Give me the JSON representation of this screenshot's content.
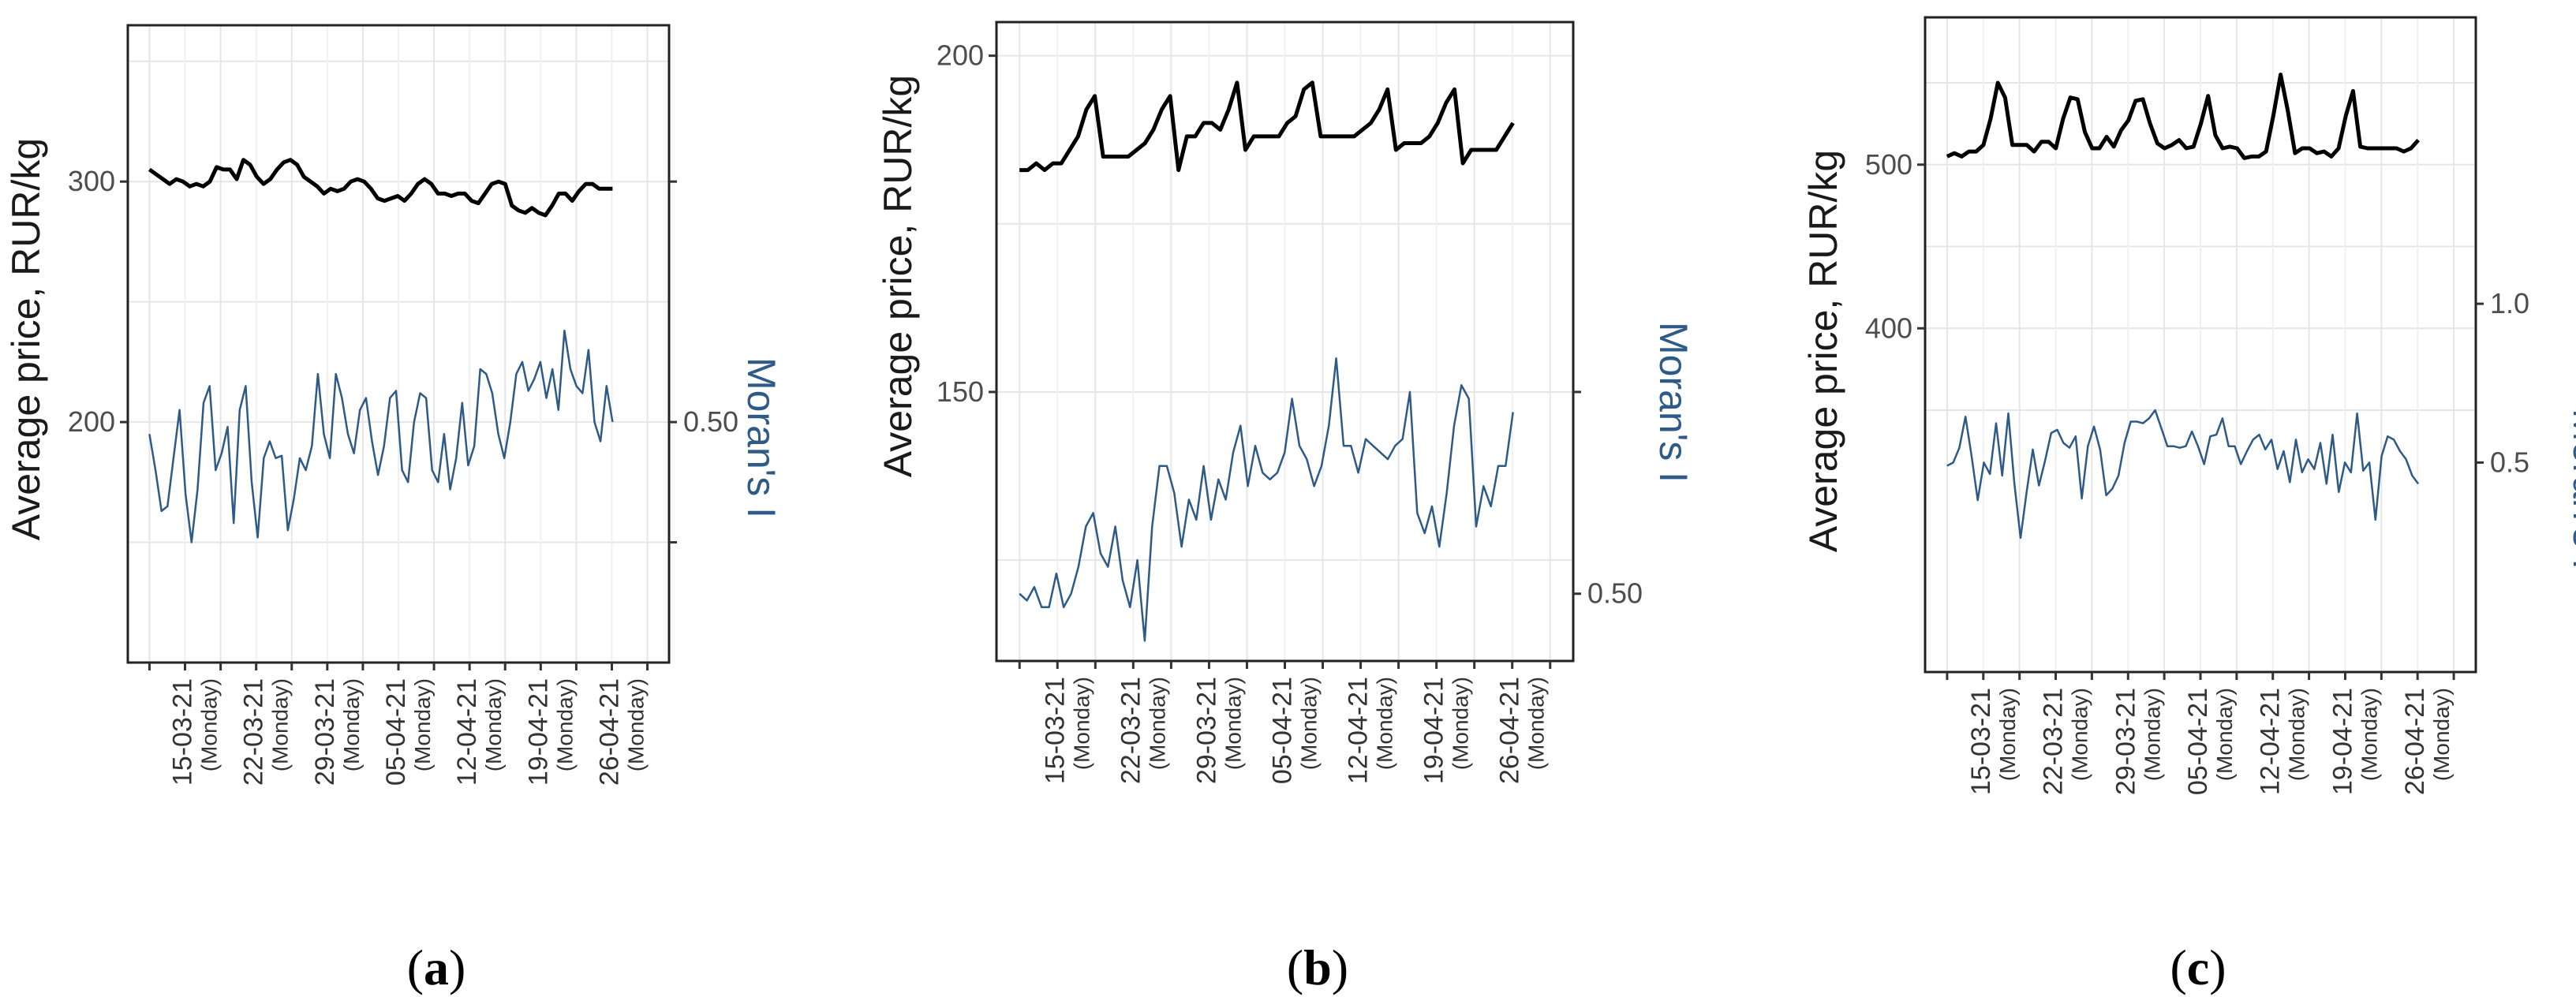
{
  "chart_data": [
    {
      "type": "line",
      "panel": "a",
      "caption_letter": "a",
      "ylabel": "Average price, RUR/kg",
      "ylabel_right": "Moran's I",
      "x_tick_dates": [
        "15-03-21",
        "22-03-21",
        "29-03-21",
        "05-04-21",
        "12-04-21",
        "19-04-21",
        "26-04-21"
      ],
      "x_tick_weekday": "(Monday)",
      "ylim": [
        100,
        365
      ],
      "y_ticks": [
        200,
        300
      ],
      "y_tick_labels": [
        "200",
        "300"
      ],
      "right_ticks": [
        0.5
      ],
      "right_tick_labels": [
        "0.50"
      ],
      "right_extra_tick_values": [
        150,
        300
      ],
      "series": [
        {
          "name": "Average price",
          "axis": "left",
          "color": "#000000",
          "values": [
            305,
            303,
            301,
            299,
            301,
            300,
            298,
            299,
            298,
            300,
            306,
            305,
            305,
            301,
            309,
            307,
            302,
            299,
            301,
            305,
            308,
            309,
            307,
            302,
            300,
            298,
            295,
            297,
            296,
            297,
            300,
            301,
            300,
            297,
            293,
            292,
            293,
            294,
            292,
            295,
            299,
            301,
            299,
            295,
            295,
            294,
            295,
            295,
            292,
            291,
            295,
            299,
            300,
            299,
            290,
            288,
            287,
            289,
            287,
            286,
            290,
            295,
            295,
            292,
            296,
            299,
            299,
            297,
            297,
            297
          ]
        },
        {
          "name": "Moran's I",
          "axis": "left-scaled",
          "color": "#2e5a87",
          "values": [
            195,
            180,
            163,
            165,
            185,
            205,
            170,
            150,
            172,
            208,
            215,
            180,
            187,
            198,
            158,
            205,
            215,
            175,
            152,
            185,
            192,
            185,
            186,
            155,
            168,
            185,
            180,
            190,
            220,
            195,
            185,
            220,
            210,
            195,
            187,
            205,
            210,
            192,
            178,
            190,
            210,
            213,
            180,
            175,
            200,
            212,
            210,
            180,
            175,
            195,
            172,
            185,
            208,
            182,
            190,
            222,
            220,
            212,
            195,
            185,
            200,
            220,
            225,
            213,
            218,
            225,
            210,
            222,
            205,
            238,
            222,
            215,
            212,
            230,
            200,
            192,
            215,
            200
          ]
        }
      ]
    },
    {
      "type": "line",
      "panel": "b",
      "caption_letter": "b",
      "ylabel": "Average price, RUR/kg",
      "ylabel_right": "Moran's I",
      "x_tick_dates": [
        "15-03-21",
        "22-03-21",
        "29-03-21",
        "05-04-21",
        "12-04-21",
        "19-04-21",
        "26-04-21"
      ],
      "x_tick_weekday": "(Monday)",
      "ylim": [
        110,
        205
      ],
      "y_ticks": [
        150,
        200
      ],
      "y_tick_labels": [
        "150",
        "200"
      ],
      "right_ticks": [
        0.5
      ],
      "right_tick_labels": [
        "0.50"
      ],
      "right_extra_tick_values": [
        150
      ],
      "series": [
        {
          "name": "Average price",
          "axis": "left",
          "color": "#000000",
          "values": [
            183,
            183,
            184,
            183,
            184,
            184,
            186,
            188,
            192,
            194,
            185,
            185,
            185,
            185,
            186,
            187,
            189,
            192,
            194,
            183,
            188,
            188,
            190,
            190,
            189,
            192,
            196,
            186,
            188,
            188,
            188,
            188,
            190,
            191,
            195,
            196,
            188,
            188,
            188,
            188,
            188,
            189,
            190,
            192,
            195,
            186,
            187,
            187,
            187,
            188,
            190,
            193,
            195,
            184,
            186,
            186,
            186,
            186,
            188,
            190
          ]
        },
        {
          "name": "Moran's I",
          "axis": "left-scaled",
          "color": "#2e5a87",
          "values": [
            120,
            119,
            121,
            118,
            118,
            123,
            118,
            120,
            124,
            130,
            132,
            126,
            124,
            130,
            122,
            118,
            125,
            113,
            130,
            139,
            139,
            135,
            127,
            134,
            131,
            139,
            131,
            137,
            134,
            141,
            145,
            136,
            142,
            138,
            137,
            138,
            141,
            149,
            142,
            140,
            136,
            139,
            145,
            155,
            142,
            142,
            138,
            143,
            142,
            141,
            140,
            142,
            143,
            150,
            132,
            129,
            133,
            127,
            135,
            145,
            151,
            149,
            130,
            136,
            133,
            139,
            139,
            147
          ]
        }
      ]
    },
    {
      "type": "line",
      "panel": "c",
      "caption_letter": "c",
      "ylabel": "Average price, RUR/kg",
      "ylabel_right": "Moran's I",
      "x_tick_dates": [
        "15-03-21",
        "22-03-21",
        "29-03-21",
        "05-04-21",
        "12-04-21",
        "19-04-21",
        "26-04-21"
      ],
      "x_tick_weekday": "(Monday)",
      "ylim": [
        190,
        590
      ],
      "y_ticks": [
        400,
        500
      ],
      "y_tick_labels": [
        "400",
        "500"
      ],
      "right_ticks": [
        0.5,
        1.0
      ],
      "right_tick_labels": [
        "0.5",
        "1.0"
      ],
      "series": [
        {
          "name": "Average price",
          "axis": "left",
          "color": "#000000",
          "values": [
            505,
            507,
            505,
            508,
            508,
            512,
            528,
            550,
            541,
            512,
            512,
            512,
            508,
            514,
            514,
            510,
            528,
            541,
            540,
            520,
            510,
            510,
            517,
            511,
            521,
            527,
            539,
            540,
            525,
            513,
            510,
            512,
            515,
            510,
            511,
            525,
            542,
            518,
            510,
            511,
            510,
            504,
            505,
            505,
            508,
            530,
            555,
            533,
            507,
            510,
            510,
            507,
            508,
            505,
            510,
            530,
            545,
            511,
            510,
            510,
            510,
            510,
            510,
            508,
            510,
            515
          ]
        },
        {
          "name": "Moran's I",
          "axis": "left-scaled",
          "color": "#2e5a87",
          "values": [
            316,
            318,
            327,
            346,
            322,
            295,
            318,
            311,
            342,
            310,
            348,
            305,
            272,
            300,
            326,
            304,
            319,
            336,
            338,
            330,
            327,
            334,
            296,
            328,
            340,
            326,
            298,
            302,
            310,
            330,
            343,
            343,
            342,
            345,
            350,
            339,
            328,
            328,
            327,
            328,
            337,
            328,
            317,
            334,
            335,
            345,
            328,
            328,
            317,
            325,
            332,
            335,
            326,
            332,
            314,
            325,
            306,
            332,
            312,
            320,
            314,
            330,
            305,
            335,
            300,
            318,
            312,
            348,
            313,
            318,
            283,
            322,
            334,
            332,
            325,
            320,
            310,
            305
          ]
        }
      ]
    }
  ]
}
